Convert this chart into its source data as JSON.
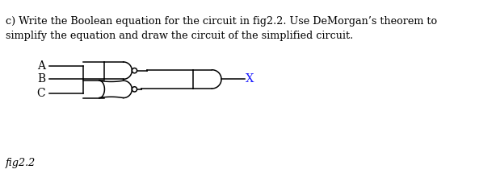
{
  "title_text": "c) Write the Boolean equation for the circuit in fig2.2. Use DeMorgan’s theorem to\nsimplify the equation and draw the circuit of the simplified circuit.",
  "fig_label": "fig2.2",
  "label_A": "A",
  "label_B": "B",
  "label_C": "C",
  "label_X": "X",
  "bg_color": "#ffffff",
  "line_color": "#000000",
  "text_color": "#000000",
  "figsize": [
    6.14,
    2.36
  ],
  "dpi": 100
}
